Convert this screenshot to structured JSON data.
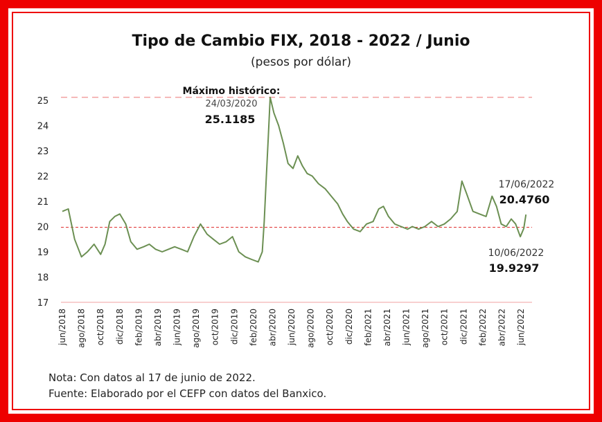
{
  "title": "Tipo de Cambio FIX, 2018 - 2022 / Junio",
  "subtitle": "(pesos por dólar)",
  "notes": {
    "nota": "Nota: Con datos al 17 de junio de 2022.",
    "fuente": "Fuente: Elaborado por el CEFP con datos del Banxico."
  },
  "colors": {
    "frame": "#ee0000",
    "line": "#6b8f52",
    "max_line": "#f2a0a0",
    "ref_line": "#e03030",
    "axis_line": "#f2a0a0"
  },
  "chart_data": {
    "type": "line",
    "title": "Tipo de Cambio FIX, 2018 - 2022 / Junio",
    "subtitle": "(pesos por dólar)",
    "xlabel": "",
    "ylabel": "",
    "ylim": [
      17,
      25
    ],
    "yticks": [
      "25",
      "24",
      "23",
      "22",
      "21",
      "20",
      "19",
      "18",
      "17"
    ],
    "xtick_labels": [
      "jun/2018",
      "ago/2018",
      "oct/2018",
      "dic/2018",
      "feb/2019",
      "abr/2019",
      "jun/2019",
      "ago/2019",
      "oct/2019",
      "dic/2019",
      "feb/2020",
      "abr/2020",
      "jun/2020",
      "ago/2020",
      "oct/2020",
      "dic/2020",
      "feb/2021",
      "abr/2021",
      "jun/2021",
      "ago/2021",
      "oct/2021",
      "dic/2021",
      "feb/2022",
      "abr/2022",
      "jun/2022"
    ],
    "x": [
      "2018-06-01",
      "2018-06-20",
      "2018-07-10",
      "2018-08-01",
      "2018-08-20",
      "2018-09-10",
      "2018-10-01",
      "2018-10-15",
      "2018-10-30",
      "2018-11-15",
      "2018-12-01",
      "2018-12-20",
      "2019-01-05",
      "2019-01-25",
      "2019-02-15",
      "2019-03-05",
      "2019-03-25",
      "2019-04-15",
      "2019-05-05",
      "2019-05-25",
      "2019-06-15",
      "2019-07-05",
      "2019-07-25",
      "2019-08-15",
      "2019-09-05",
      "2019-09-25",
      "2019-10-15",
      "2019-11-05",
      "2019-11-25",
      "2019-12-15",
      "2020-01-05",
      "2020-01-25",
      "2020-02-15",
      "2020-02-28",
      "2020-03-05",
      "2020-03-12",
      "2020-03-18",
      "2020-03-24",
      "2020-04-05",
      "2020-04-20",
      "2020-05-05",
      "2020-05-20",
      "2020-06-05",
      "2020-06-20",
      "2020-07-05",
      "2020-07-20",
      "2020-08-05",
      "2020-08-25",
      "2020-09-15",
      "2020-10-05",
      "2020-10-25",
      "2020-11-10",
      "2020-11-25",
      "2020-12-15",
      "2021-01-05",
      "2021-01-25",
      "2021-02-15",
      "2021-03-05",
      "2021-03-20",
      "2021-04-05",
      "2021-04-25",
      "2021-05-15",
      "2021-06-05",
      "2021-06-20",
      "2021-07-10",
      "2021-07-30",
      "2021-08-20",
      "2021-09-10",
      "2021-09-30",
      "2021-10-20",
      "2021-11-10",
      "2021-11-25",
      "2021-12-10",
      "2021-12-30",
      "2022-01-20",
      "2022-02-10",
      "2022-03-01",
      "2022-03-15",
      "2022-03-30",
      "2022-04-15",
      "2022-05-01",
      "2022-05-15",
      "2022-05-30",
      "2022-06-10",
      "2022-06-17"
    ],
    "series": [
      {
        "values": [
          20.6,
          20.7,
          19.5,
          18.8,
          19.0,
          19.3,
          18.9,
          19.3,
          20.2,
          20.4,
          20.5,
          20.1,
          19.4,
          19.1,
          19.2,
          19.3,
          19.1,
          19.0,
          19.1,
          19.2,
          19.1,
          19.0,
          19.6,
          20.1,
          19.7,
          19.5,
          19.3,
          19.4,
          19.6,
          19.0,
          18.8,
          18.7,
          18.6,
          19.0,
          20.2,
          22.0,
          23.5,
          25.1185,
          24.5,
          24.0,
          23.3,
          22.5,
          22.3,
          22.8,
          22.4,
          22.1,
          22.0,
          21.7,
          21.5,
          21.2,
          20.9,
          20.5,
          20.2,
          19.9,
          19.8,
          20.1,
          20.2,
          20.7,
          20.8,
          20.4,
          20.1,
          20.0,
          19.9,
          20.0,
          19.9,
          20.0,
          20.2,
          20.0,
          20.1,
          20.3,
          20.6,
          21.8,
          21.3,
          20.6,
          20.5,
          20.4,
          21.2,
          20.8,
          20.1,
          20.0,
          20.3,
          20.1,
          19.6,
          19.9297,
          20.476
        ]
      }
    ],
    "annotations": [
      {
        "label": "Máximo histórico:",
        "date": "24/03/2020",
        "value": "25.1185"
      },
      {
        "date": "17/06/2022",
        "value": "20.4760"
      },
      {
        "date": "10/06/2022",
        "value": "19.9297"
      }
    ],
    "reference_lines": [
      {
        "style": "dashed",
        "value": 25.1185
      },
      {
        "style": "dashed",
        "value": 20.0
      }
    ],
    "grid": false,
    "legend": "none"
  }
}
